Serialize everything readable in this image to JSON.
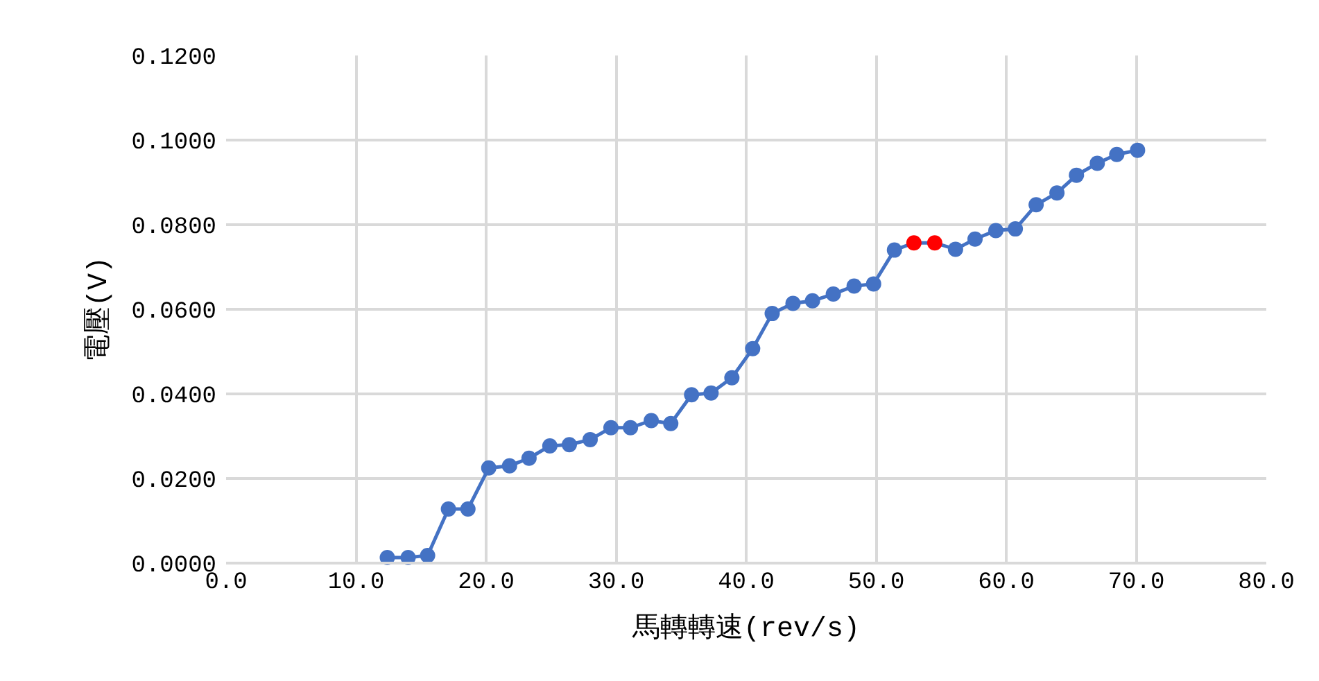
{
  "chart_data": {
    "type": "line",
    "xlabel": "馬轉轉速(rev/s)",
    "ylabel": "電壓(V)",
    "x": [
      12.4,
      14.0,
      15.5,
      17.1,
      18.6,
      20.2,
      21.8,
      23.3,
      24.9,
      26.4,
      28.0,
      29.6,
      31.1,
      32.7,
      34.2,
      35.8,
      37.3,
      38.9,
      40.5,
      42.0,
      43.6,
      45.1,
      46.7,
      48.3,
      49.8,
      51.4,
      52.9,
      54.5,
      56.1,
      57.6,
      59.2,
      60.7,
      62.3,
      63.9,
      65.4,
      67.0,
      68.5,
      70.1
    ],
    "series": [
      {
        "color": "#4472c4",
        "values": [
          0.0013,
          0.0013,
          0.0018,
          0.0128,
          0.0128,
          0.0225,
          0.023,
          0.0248,
          0.0277,
          0.028,
          0.0292,
          0.032,
          0.032,
          0.0337,
          0.033,
          0.0398,
          0.0402,
          0.0438,
          0.0507,
          0.059,
          0.0614,
          0.062,
          0.0636,
          0.0655,
          0.066,
          0.074,
          0.0757,
          0.0757,
          0.0742,
          0.0766,
          0.0786,
          0.079,
          0.0847,
          0.0875,
          0.0917,
          0.0945,
          0.0966,
          0.0976
        ],
        "colors": [
          "#4472c4",
          "#4472c4",
          "#4472c4",
          "#4472c4",
          "#4472c4",
          "#4472c4",
          "#4472c4",
          "#4472c4",
          "#4472c4",
          "#4472c4",
          "#4472c4",
          "#4472c4",
          "#4472c4",
          "#4472c4",
          "#4472c4",
          "#4472c4",
          "#4472c4",
          "#4472c4",
          "#4472c4",
          "#4472c4",
          "#4472c4",
          "#4472c4",
          "#4472c4",
          "#4472c4",
          "#4472c4",
          "#4472c4",
          "#ff0000",
          "#ff0000",
          "#4472c4",
          "#4472c4",
          "#4472c4",
          "#4472c4",
          "#4472c4",
          "#4472c4",
          "#4472c4",
          "#4472c4",
          "#4472c4",
          "#4472c4"
        ]
      }
    ],
    "xlim": [
      0,
      80
    ],
    "xticks": [
      {
        "value": 0,
        "label": "0.0"
      },
      {
        "value": 10,
        "label": "10.0"
      },
      {
        "value": 20,
        "label": "20.0"
      },
      {
        "value": 30,
        "label": "30.0"
      },
      {
        "value": 40,
        "label": "40.0"
      },
      {
        "value": 50,
        "label": "50.0"
      },
      {
        "value": 60,
        "label": "60.0"
      },
      {
        "value": 70,
        "label": "70.0"
      },
      {
        "value": 80,
        "label": "80.0"
      }
    ],
    "ylim": [
      0,
      0.12
    ],
    "yticks": [
      {
        "value": 0,
        "label": "0.0000"
      },
      {
        "value": 0.02,
        "label": "0.0200"
      },
      {
        "value": 0.04,
        "label": "0.0400"
      },
      {
        "value": 0.06,
        "label": "0.0600"
      },
      {
        "value": 0.08,
        "label": "0.0800"
      },
      {
        "value": 0.1,
        "label": "0.1000"
      },
      {
        "value": 0.12,
        "label": "0.1200"
      }
    ],
    "grid": true,
    "marker": "circle",
    "line_style": "solid"
  }
}
